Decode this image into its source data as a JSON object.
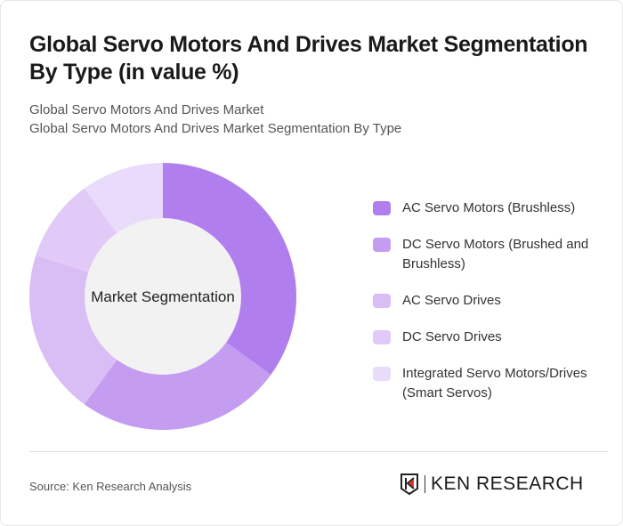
{
  "title": "Global Servo Motors And Drives Market Segmentation By Type (in value %)",
  "subtitle1": "Global Servo Motors And Drives Market",
  "subtitle2": "Global Servo Motors And Drives Market Segmentation By Type",
  "source": "Source: Ken Research Analysis",
  "logo_text": "KEN RESEARCH",
  "chart_data": {
    "type": "pie",
    "donut": true,
    "center_label": "Market Segmentation",
    "categories": [
      "AC Servo Motors (Brushless)",
      "DC Servo Motors (Brushed and Brushless)",
      "AC Servo Drives",
      "DC Servo Drives",
      "Integrated Servo Motors/Drives (Smart Servos)"
    ],
    "values": [
      35,
      25,
      20,
      10,
      10
    ],
    "colors": [
      "#b07fed",
      "#c49df0",
      "#d9bef5",
      "#e1caf7",
      "#e9dbfa"
    ],
    "legend": "right"
  }
}
